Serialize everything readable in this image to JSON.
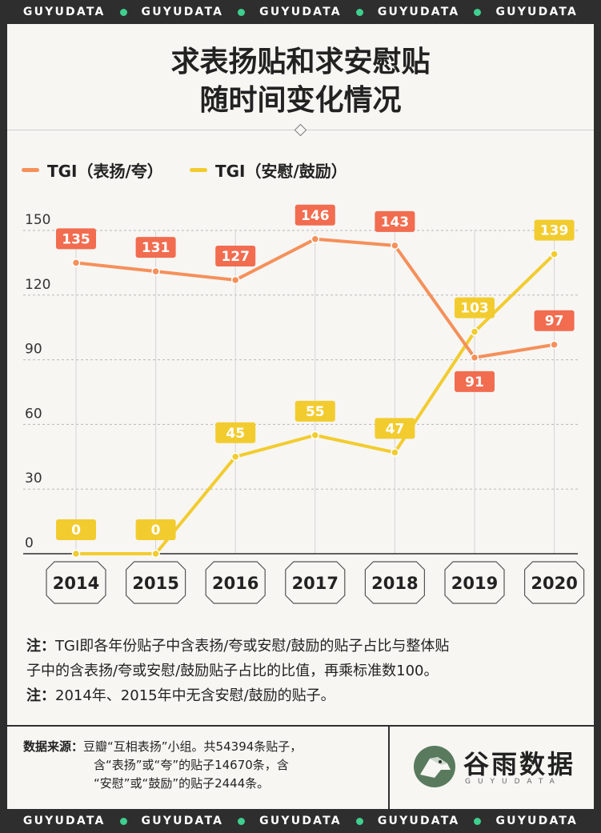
{
  "strip": {
    "brand": "GUYUDATA"
  },
  "title": {
    "line1": "求表扬贴和求安慰贴",
    "line2": "随时间变化情况"
  },
  "chart_data": {
    "type": "line",
    "title": "求表扬贴和求安慰贴随时间变化情况",
    "xlabel": "",
    "ylabel": "",
    "categories": [
      "2014",
      "2015",
      "2016",
      "2017",
      "2018",
      "2019",
      "2020"
    ],
    "ylim": [
      0,
      155
    ],
    "yticks": [
      0,
      30,
      60,
      90,
      120,
      150
    ],
    "series": [
      {
        "name": "TGI（表扬/夸）",
        "color": "#f5905a",
        "label_color": "#f26c4f",
        "values": [
          135,
          131,
          127,
          146,
          143,
          91,
          97
        ],
        "label_pos": [
          "above",
          "above",
          "above",
          "above",
          "above",
          "below",
          "above"
        ]
      },
      {
        "name": "TGI（安慰/鼓励）",
        "color": "#f2cc2f",
        "label_color": "#f2cc2f",
        "values": [
          0,
          0,
          45,
          55,
          47,
          103,
          139
        ],
        "label_pos": [
          "above",
          "above",
          "above",
          "above",
          "above",
          "above",
          "above"
        ]
      }
    ],
    "legend": "top-left"
  },
  "notes": {
    "prefix": "注：",
    "line1a": "TGI即各年份贴子中含表扬/夸或安慰/鼓励的贴子占比与整体贴",
    "line1b": "子中的含表扬/夸或安慰/鼓励贴子占比的比值，再乘标准数100。",
    "line2": "2014年、2015年中无含安慰/鼓励的贴子。"
  },
  "source": {
    "label": "数据来源：",
    "line1": "豆瓣“互相表扬”小组。共54394条贴子，",
    "line2": "含“表扬”或“夸”的贴子14670条，含",
    "line3": "“安慰”或“鼓励”的贴子2444条。"
  },
  "logo": {
    "name": "谷雨数据",
    "sub": "GUYUDATA"
  }
}
